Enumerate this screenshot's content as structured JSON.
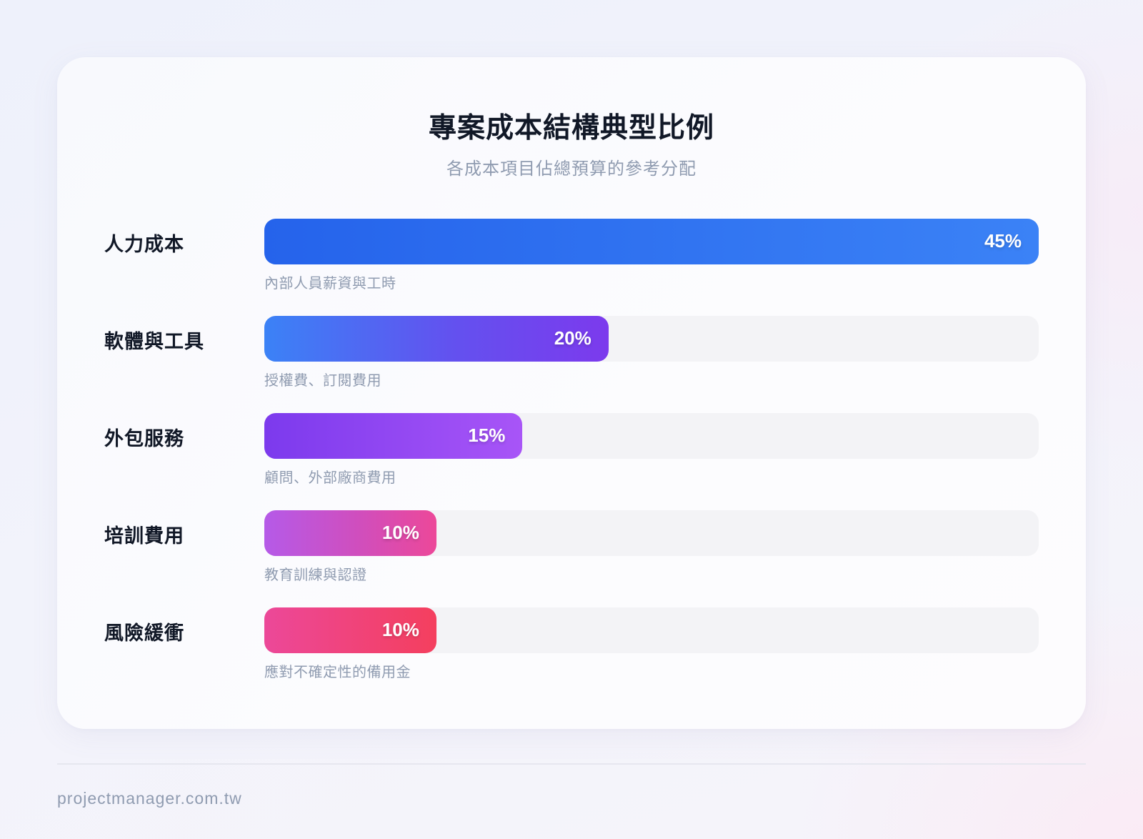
{
  "header": {
    "title": "專案成本結構典型比例",
    "subtitle": "各成本項目佔總預算的參考分配"
  },
  "items": [
    {
      "label": "人力成本",
      "value": 45,
      "value_label": "45%",
      "description": "內部人員薪資與工時",
      "gradient": [
        "#2563eb",
        "#3b82f6"
      ]
    },
    {
      "label": "軟體與工具",
      "value": 20,
      "value_label": "20%",
      "description": "授權費、訂閱費用",
      "gradient": [
        "#3b82f6",
        "#7c3aed"
      ]
    },
    {
      "label": "外包服務",
      "value": 15,
      "value_label": "15%",
      "description": "顧問、外部廠商費用",
      "gradient": [
        "#7c3aed",
        "#a855f7"
      ]
    },
    {
      "label": "培訓費用",
      "value": 10,
      "value_label": "10%",
      "description": "教育訓練與認證",
      "gradient": [
        "#b55ae8",
        "#ec4899"
      ]
    },
    {
      "label": "風險緩衝",
      "value": 10,
      "value_label": "10%",
      "description": "應對不確定性的備用金",
      "gradient": [
        "#ec4899",
        "#f43f5e"
      ]
    }
  ],
  "footer": {
    "site": "projectmanager.com.tw"
  },
  "colors": {
    "title": "#111827",
    "muted": "#8f9bb0",
    "track": "#f3f3f6"
  },
  "chart_data": {
    "type": "bar",
    "orientation": "horizontal",
    "title": "專案成本結構典型比例",
    "subtitle": "各成本項目佔總預算的參考分配",
    "categories": [
      "人力成本",
      "軟體與工具",
      "外包服務",
      "培訓費用",
      "風險緩衝"
    ],
    "values": [
      45,
      20,
      15,
      10,
      10
    ],
    "unit": "%",
    "descriptions": [
      "內部人員薪資與工時",
      "授權費、訂閱費用",
      "顧問、外部廠商費用",
      "教育訓練與認證",
      "應對不確定性的備用金"
    ],
    "xlabel": "",
    "ylabel": "",
    "bar_scale": "relative to max value (45%)",
    "grid": false,
    "legend": "none"
  }
}
